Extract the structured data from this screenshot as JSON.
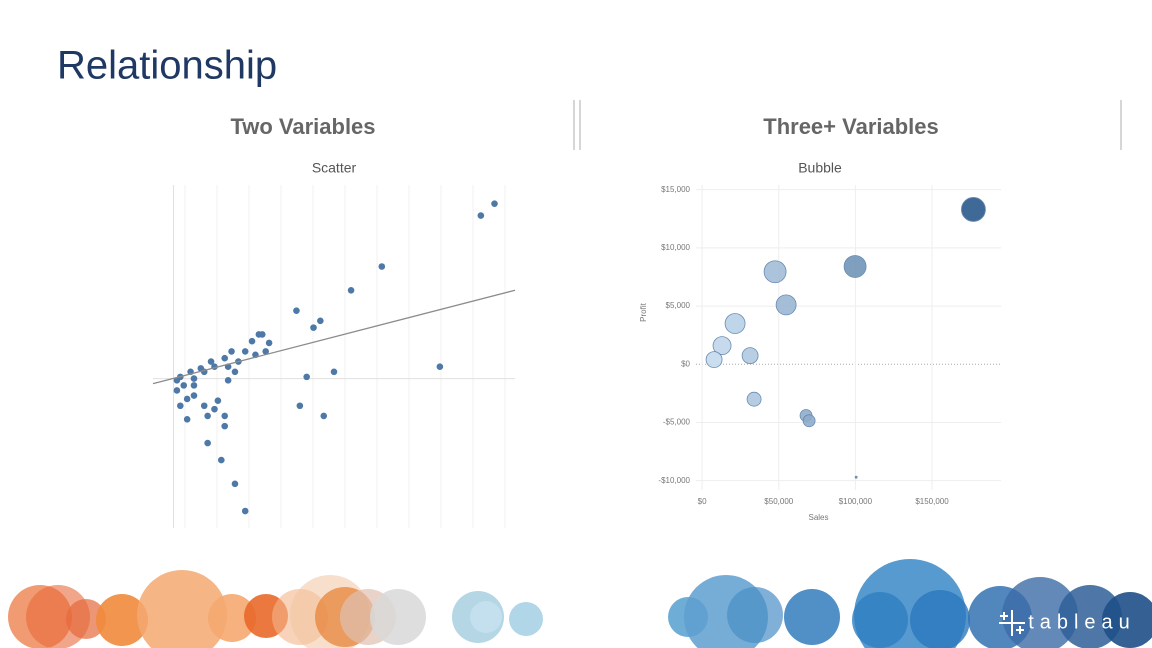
{
  "title": "Relationship",
  "sections": [
    "Two Variables",
    "Three+ Variables"
  ],
  "logo": "tableau",
  "chart_data": [
    {
      "type": "scatter",
      "title": "Scatter",
      "color": "#4e79a7",
      "trend_color": "#8c8c8c",
      "x": [
        94,
        90,
        61,
        52,
        36,
        43,
        41,
        25,
        26,
        23,
        28,
        27,
        21,
        17,
        24,
        78,
        47,
        39,
        37,
        44,
        14,
        18,
        21,
        10,
        4,
        15,
        12,
        2,
        6,
        16,
        18,
        19,
        15,
        11,
        8,
        5,
        2,
        1,
        3,
        6,
        9,
        12,
        1,
        4,
        9,
        13,
        15,
        10,
        6,
        16
      ],
      "y": [
        51.5,
        48,
        33,
        26,
        20,
        17,
        15,
        13,
        13,
        11,
        10.5,
        8,
        8,
        8,
        7,
        3.5,
        2,
        0.5,
        -8,
        -11,
        -24,
        -31,
        -39,
        -19,
        -12,
        -14,
        -9,
        -8,
        -5,
        -0.5,
        2,
        5,
        6,
        5,
        3,
        2,
        0.5,
        -0.5,
        -2,
        0,
        2,
        3.5,
        -3.5,
        -6,
        -8,
        -6.5,
        -11,
        -11,
        -2,
        3.5
      ],
      "trend": {
        "x": [
          -6,
          100
        ],
        "y": [
          -1.5,
          26
        ]
      },
      "xlim": [
        -6,
        100
      ],
      "ylim": [
        -44,
        57
      ]
    },
    {
      "type": "bubble",
      "title": "Bubble",
      "x_label": "Sales",
      "y_label": "Profit",
      "color_range": [
        "#c6dbef",
        "#2b5a8c"
      ],
      "x": [
        177000,
        99800,
        47600,
        54800,
        21500,
        13000,
        31300,
        7800,
        33900,
        67800,
        69800,
        100500
      ],
      "y": [
        13300,
        8400,
        7950,
        5100,
        3500,
        1600,
        740,
        400,
        -3000,
        -4400,
        -4850,
        -9700
      ],
      "sizes": [
        144,
        121,
        121,
        100,
        100,
        81,
        64,
        64,
        49,
        36,
        36,
        1
      ],
      "xlim": [
        -4000,
        195000
      ],
      "ylim": [
        -10800,
        15400
      ],
      "grid": true,
      "xticks": [
        {
          "value": 0,
          "label": "$0"
        },
        {
          "value": 50000,
          "label": "$50,000"
        },
        {
          "value": 100000,
          "label": "$100,000"
        },
        {
          "value": 150000,
          "label": "$150,000"
        }
      ],
      "yticks": [
        {
          "value": 15000,
          "label": "$15,000"
        },
        {
          "value": 10000,
          "label": "$10,000"
        },
        {
          "value": 5000,
          "label": "$5,000"
        },
        {
          "value": 0,
          "label": "$0"
        },
        {
          "value": -5000,
          "label": "-$5,000"
        },
        {
          "value": -10000,
          "label": "-$10,000"
        }
      ]
    }
  ]
}
